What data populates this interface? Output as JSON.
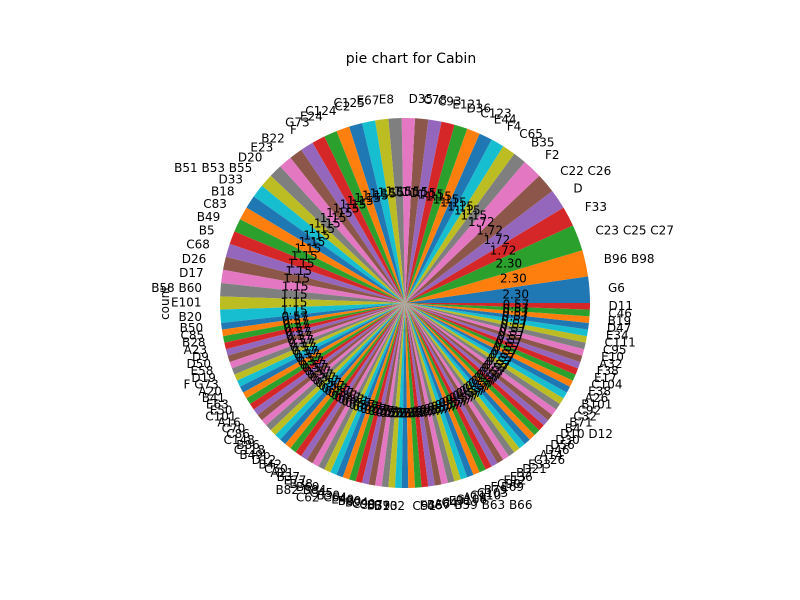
{
  "chart_data": {
    "type": "pie",
    "title": "pie chart for Cabin",
    "ylabel": "count",
    "start_angle_deg": 0,
    "direction": "counterclockwise",
    "percent_format": "%.2f",
    "colors": [
      "#1f77b4",
      "#ff7f0e",
      "#2ca02c",
      "#d62728",
      "#9467bd",
      "#8c564b",
      "#e377c2",
      "#7f7f7f",
      "#bcbd22",
      "#17becf"
    ],
    "categories": [
      "G6",
      "B96 B98",
      "C23 C25 C27",
      "F33",
      "D",
      "C22 C26",
      "F2",
      "B35",
      "C65",
      "F4",
      "E44",
      "C123",
      "D36",
      "E121",
      "C93",
      "C78",
      "D35",
      "E8",
      "E67",
      "C125",
      "C2",
      "C124",
      "E24",
      "G73",
      "F",
      "B22",
      "E23",
      "D20",
      "B51 B53 B55",
      "D33",
      "B18",
      "C83",
      "B49",
      "B5",
      "C68",
      "D26",
      "D17",
      "B58 B60",
      "E101",
      "B20",
      "B50",
      "C85",
      "B28",
      "A23",
      "D9",
      "D50",
      "E58",
      "D19",
      "F G73",
      "A20",
      "B41",
      "E63",
      "E50",
      "C101",
      "A16",
      "C70",
      "C86",
      "C148",
      "B86",
      "C118",
      "B49b",
      "D12",
      "B42",
      "C50",
      "A21",
      "B37",
      "E77",
      "B38",
      "B69",
      "B82 B84",
      "C45",
      "B30",
      "C62 C64",
      "E40",
      "B80",
      "B94",
      "C99",
      "C87",
      "B39",
      "B73",
      "B102",
      "C91",
      "E46",
      "B57 B59 B63 B66",
      "A6",
      "C47",
      "E31",
      "C106",
      "A19",
      "C110",
      "C103",
      "B79",
      "F E69",
      "C90",
      "E12",
      "E36",
      "B3",
      "D21",
      "E33",
      "C126",
      "A14",
      "D46",
      "D56",
      "D30",
      "D10 D12",
      "B4",
      "B71",
      "C32",
      "C92",
      "B101",
      "A26",
      "E38",
      "C104",
      "E17",
      "F38",
      "A32",
      "E10",
      "C95",
      "C111",
      "E34",
      "D47",
      "B19",
      "C46",
      "D11"
    ],
    "values": [
      4,
      4,
      4,
      3,
      3,
      3,
      3,
      2,
      2,
      2,
      2,
      2,
      2,
      2,
      2,
      2,
      2,
      2,
      2,
      2,
      2,
      2,
      2,
      2,
      2,
      2,
      2,
      2,
      2,
      2,
      2,
      2,
      2,
      2,
      2,
      2,
      2,
      2,
      2,
      2,
      1,
      1,
      1,
      1,
      1,
      1,
      1,
      1,
      1,
      1,
      1,
      1,
      1,
      1,
      1,
      1,
      1,
      1,
      1,
      1,
      1,
      1,
      1,
      1,
      1,
      1,
      1,
      1,
      1,
      1,
      1,
      1,
      1,
      1,
      1,
      1,
      1,
      1,
      1,
      1,
      1,
      1,
      1,
      1,
      1,
      1,
      1,
      1,
      1,
      1,
      1,
      1,
      1,
      1,
      1,
      1,
      1,
      1,
      1,
      1,
      1,
      1,
      1,
      1,
      1,
      1,
      1,
      1,
      1,
      1,
      1,
      1,
      1,
      1,
      1,
      1,
      1,
      1,
      1,
      1,
      1,
      1,
      1,
      1
    ]
  }
}
